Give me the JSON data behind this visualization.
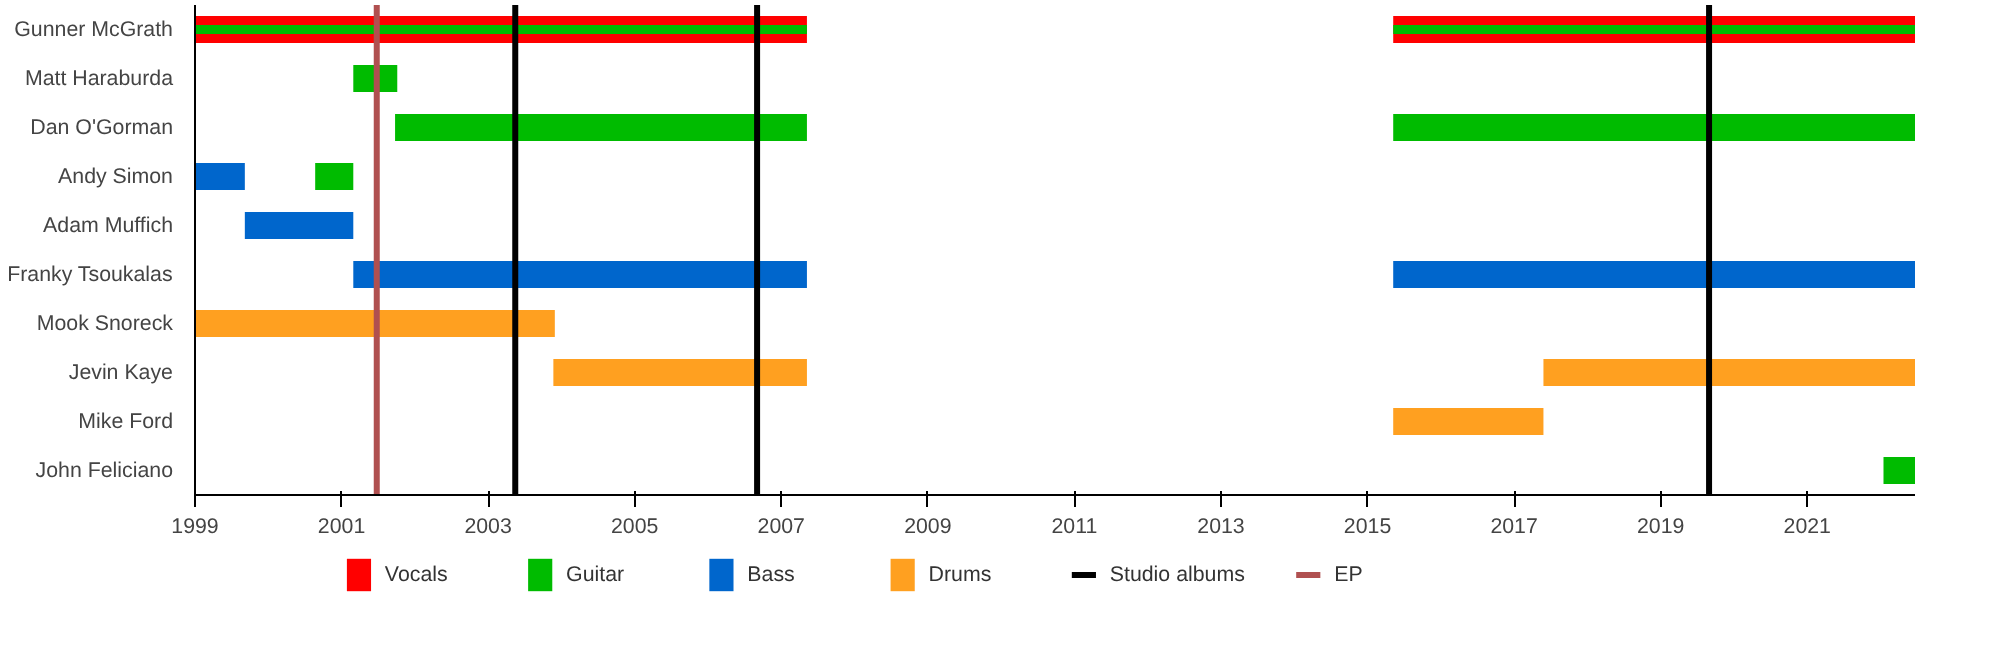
{
  "chart_data": {
    "type": "bar",
    "orientation": "horizontal",
    "categories": [
      "Gunner McGrath",
      "Matt Haraburda",
      "Dan O'Gorman",
      "Andy Simon",
      "Adam Muffich",
      "Franky Tsoukalas",
      "Mook Snoreck",
      "Jevin Kaye",
      "Mike Ford",
      "John Feliciano"
    ],
    "series": [
      {
        "name": "Vocals",
        "color": "#ff0000",
        "base": [
          1999,
          null,
          null,
          null,
          null,
          null,
          null,
          null,
          null,
          null
        ],
        "values": [
          8.35,
          null,
          null,
          null,
          null,
          null,
          null,
          null,
          null,
          null
        ]
      },
      {
        "color": "#ff0000",
        "base": [
          2015.35,
          null,
          null,
          null,
          null,
          null,
          null,
          null,
          null,
          null
        ],
        "values": [
          7.12,
          null,
          null,
          null,
          null,
          null,
          null,
          null,
          null,
          null
        ]
      },
      {
        "name": "Guitar",
        "color": "#00bb00",
        "base": [
          1999,
          2001.16,
          2001.73,
          2000.64,
          null,
          null,
          null,
          null,
          null,
          2022.04
        ],
        "values": [
          8.35,
          0.6,
          5.62,
          0.52,
          null,
          null,
          null,
          null,
          null,
          0.43
        ]
      },
      {
        "color": "#00bb00",
        "base": [
          2015.35,
          null,
          2015.35,
          null,
          null,
          null,
          null,
          null,
          null,
          null
        ],
        "values": [
          7.12,
          null,
          7.12,
          null,
          null,
          null,
          null,
          null,
          null,
          null
        ]
      },
      {
        "name": "Bass",
        "color": "#0066cc",
        "base": [
          null,
          null,
          null,
          1999,
          1999.68,
          2001.16,
          null,
          null,
          null,
          null
        ],
        "values": [
          null,
          null,
          null,
          0.68,
          1.48,
          6.19,
          null,
          null,
          null,
          null
        ]
      },
      {
        "color": "#0066cc",
        "base": [
          null,
          null,
          null,
          null,
          null,
          2015.35,
          null,
          null,
          null,
          null
        ],
        "values": [
          null,
          null,
          null,
          null,
          null,
          7.12,
          null,
          null,
          null,
          null
        ]
      },
      {
        "name": "Drums",
        "color": "#ffa020",
        "base": [
          null,
          null,
          null,
          null,
          null,
          null,
          1999,
          2003.89,
          2015.35,
          null
        ],
        "values": [
          null,
          null,
          null,
          null,
          null,
          null,
          4.91,
          3.46,
          2.05,
          null
        ]
      },
      {
        "color": "#ffa020",
        "base": [
          null,
          null,
          null,
          null,
          null,
          null,
          null,
          2017.4,
          null,
          null
        ],
        "values": [
          null,
          null,
          null,
          null,
          null,
          null,
          null,
          5.07,
          null,
          null
        ]
      }
    ],
    "ref_lines": [
      {
        "axis": "x",
        "value": 2003.37,
        "label": "Studio albums",
        "color": "#000000"
      },
      {
        "axis": "x",
        "value": 2006.67,
        "color": "#000000"
      },
      {
        "axis": "x",
        "value": 2019.66,
        "color": "#000000"
      },
      {
        "axis": "x",
        "value": 2001.48,
        "label": "EP",
        "color": "#b05050"
      }
    ],
    "xlim": [
      1999,
      2022.47
    ],
    "xticks": [
      1999,
      2001,
      2003,
      2005,
      2007,
      2009,
      2011,
      2013,
      2015,
      2017,
      2019,
      2021
    ],
    "grid": false,
    "legend": "bottom"
  }
}
